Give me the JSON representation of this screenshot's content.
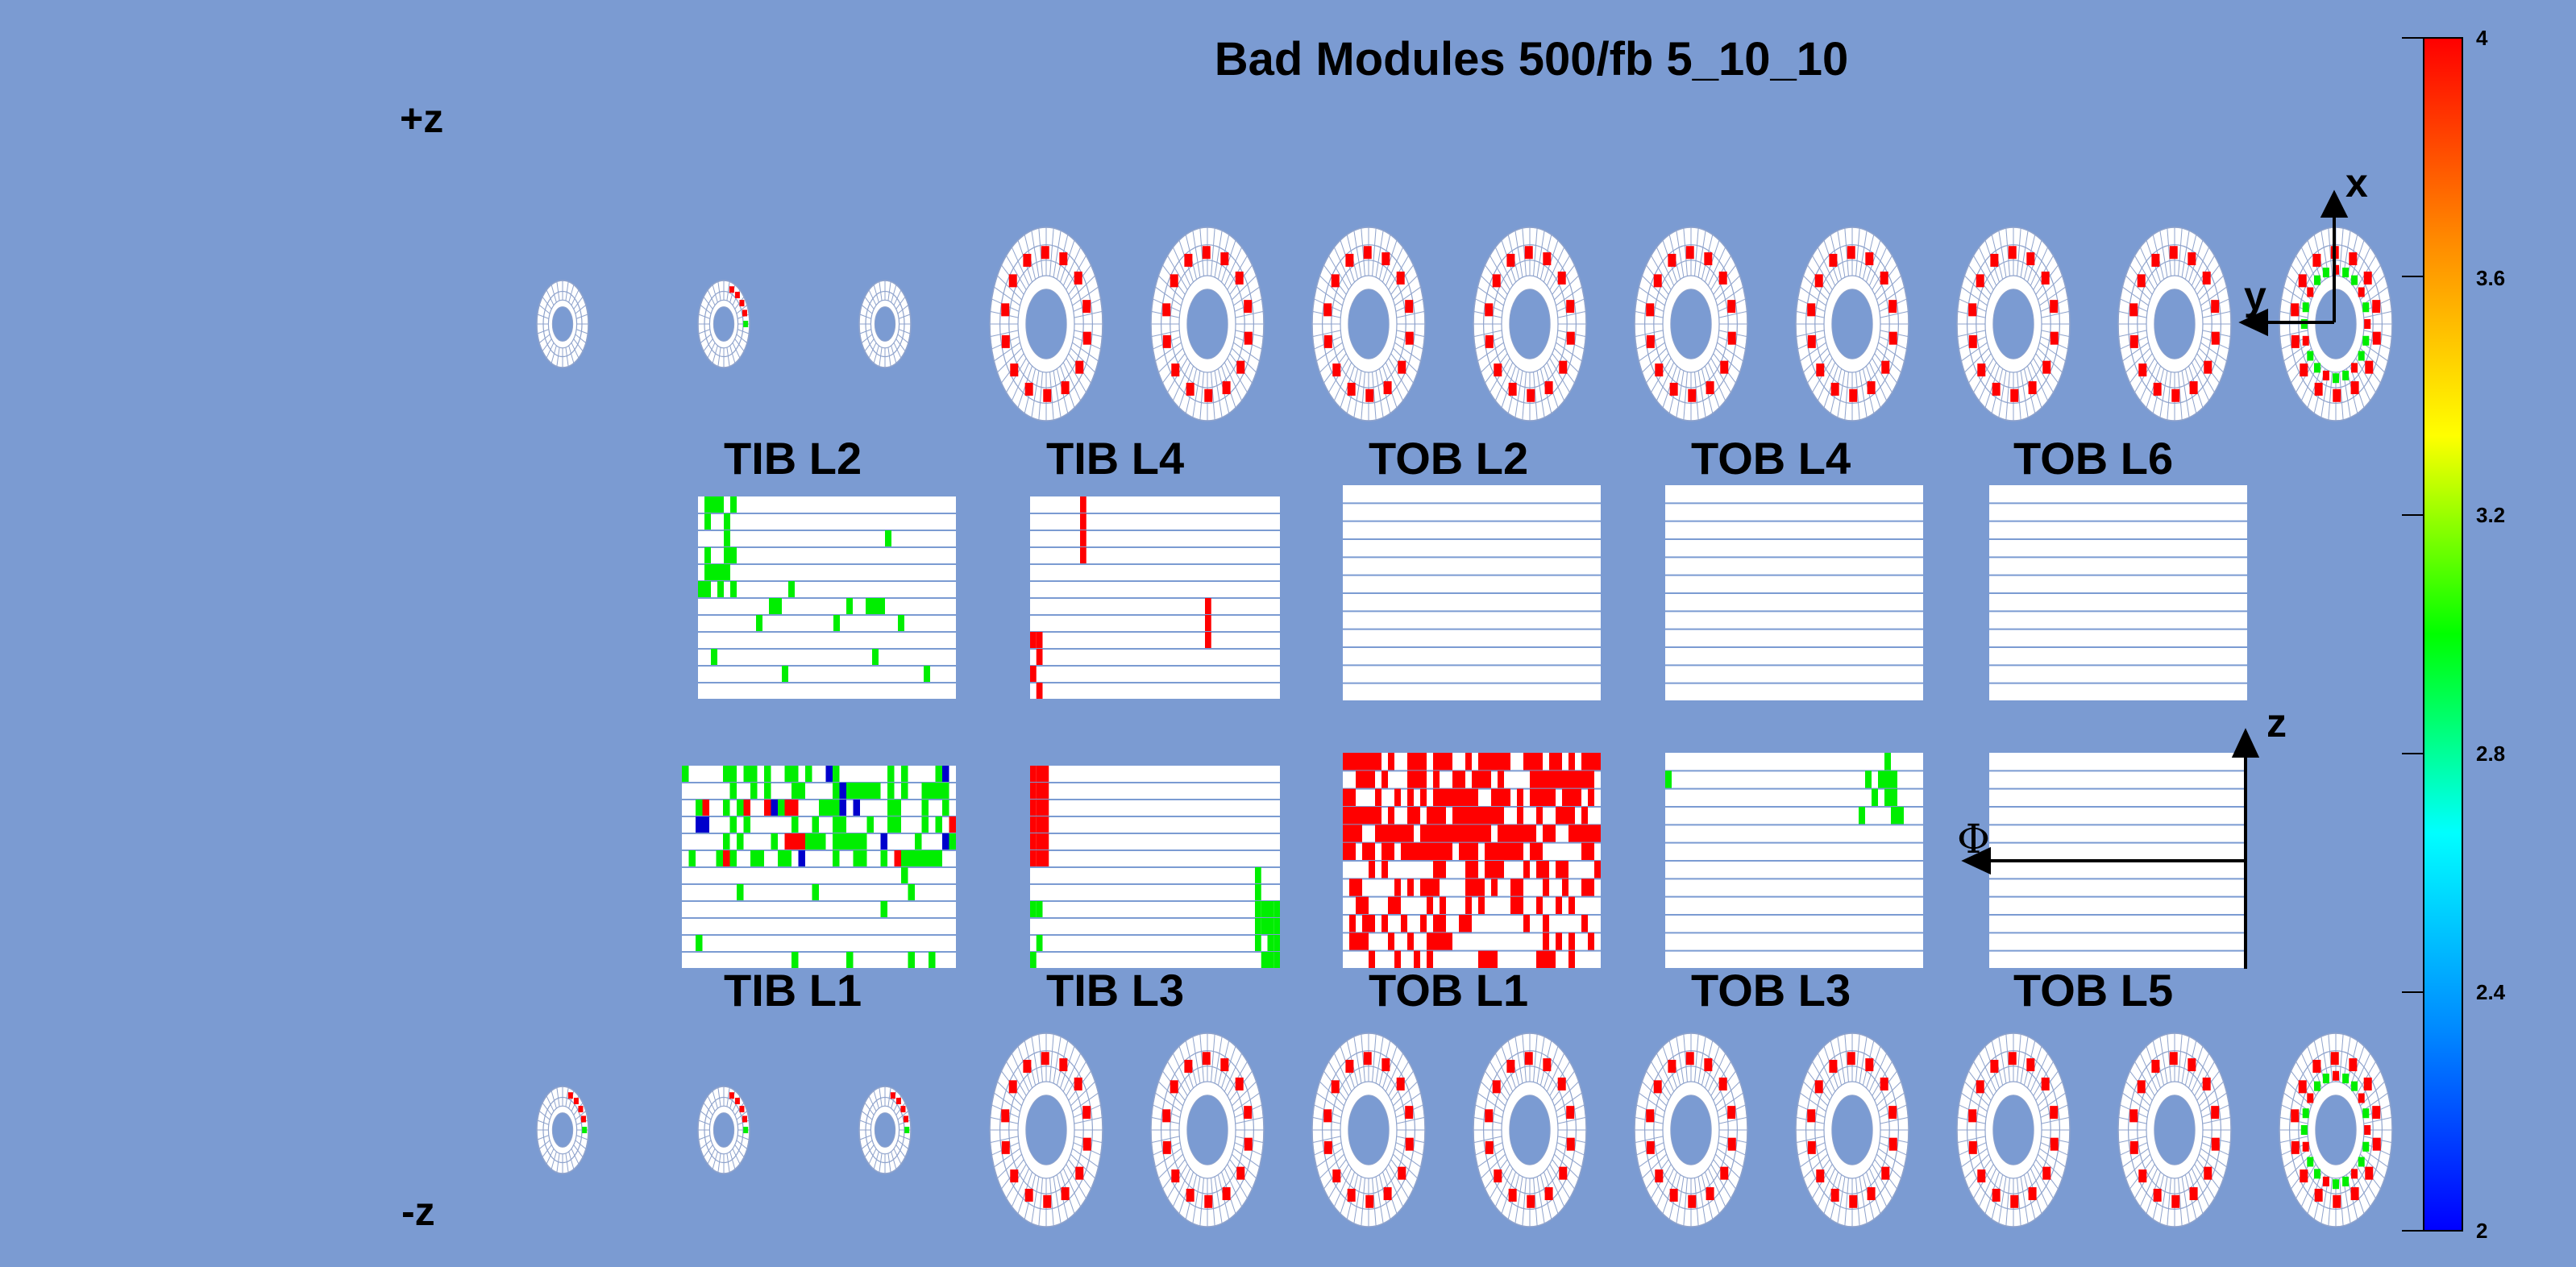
{
  "title": "Bad Modules 500/fb 5_10_10",
  "z_labels": {
    "plus": "+z",
    "minus": "-z"
  },
  "panel_labels": {
    "tib_l2": "TIB L2",
    "tib_l4": "TIB L4",
    "tob_l2": "TOB L2",
    "tob_l4": "TOB L4",
    "tob_l6": "TOB L6",
    "tib_l1": "TIB L1",
    "tib_l3": "TIB L3",
    "tob_l1": "TOB L1",
    "tob_l3": "TOB L3",
    "tob_l5": "TOB L5"
  },
  "axes": {
    "top": {
      "vertical": "x",
      "horizontal": "y"
    },
    "bottom": {
      "vertical": "z",
      "horizontal": "Φ"
    }
  },
  "color_scale": {
    "min": 2,
    "max": 4,
    "labels": [
      "4",
      "3.6",
      "3.2",
      "2.8",
      "2.4",
      "2"
    ],
    "gradient_colors": [
      "#ff0000",
      "#ff8800",
      "#ffff00",
      "#00ff00",
      "#00ffff",
      "#0088ff",
      "#0000ff"
    ]
  },
  "colors": {
    "background": "#7b9bd2",
    "bad_high": "#ff0000",
    "bad_mid": "#00ee00",
    "bad_low": "#0000cc",
    "module": "#ffffff",
    "grid": "#7b9bd2"
  },
  "disk_rows": {
    "plus_z": [
      "small",
      "small-partial",
      "small",
      "large",
      "large",
      "large",
      "large",
      "large",
      "large",
      "large",
      "large",
      "large-green"
    ],
    "minus_z": [
      "small-partial",
      "small-partial",
      "small-partial",
      "large",
      "large",
      "large",
      "large",
      "large",
      "large",
      "large",
      "large",
      "large-green"
    ]
  }
}
